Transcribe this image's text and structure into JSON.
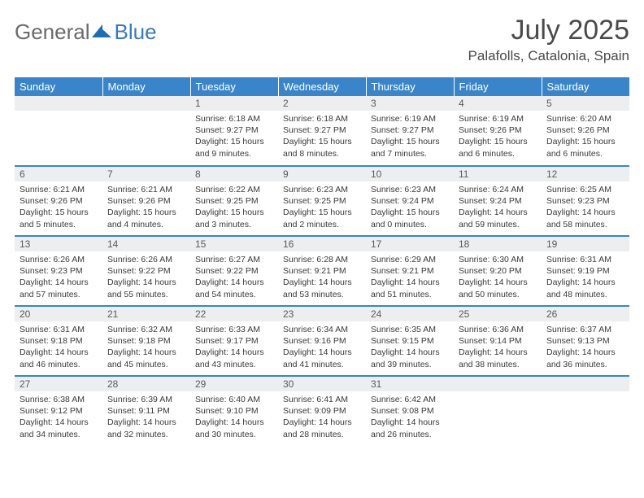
{
  "brand": {
    "part1": "General",
    "part2": "Blue"
  },
  "title": "July 2025",
  "location": "Palafolls, Catalonia, Spain",
  "colors": {
    "header_bg": "#3a85c9",
    "header_text": "#ffffff",
    "daynum_bg": "#eceeef",
    "row_border": "#3a85c9",
    "body_text": "#3a3a3a",
    "logo_gray": "#6b6b6b",
    "logo_blue": "#3a7ab8"
  },
  "typography": {
    "base_font": "Arial",
    "title_size": 34,
    "location_size": 17,
    "th_size": 13,
    "body_size": 10.5
  },
  "days_of_week": [
    "Sunday",
    "Monday",
    "Tuesday",
    "Wednesday",
    "Thursday",
    "Friday",
    "Saturday"
  ],
  "weeks": [
    [
      null,
      null,
      {
        "n": "1",
        "sr": "6:18 AM",
        "ss": "9:27 PM",
        "dl": "15 hours and 9 minutes."
      },
      {
        "n": "2",
        "sr": "6:18 AM",
        "ss": "9:27 PM",
        "dl": "15 hours and 8 minutes."
      },
      {
        "n": "3",
        "sr": "6:19 AM",
        "ss": "9:27 PM",
        "dl": "15 hours and 7 minutes."
      },
      {
        "n": "4",
        "sr": "6:19 AM",
        "ss": "9:26 PM",
        "dl": "15 hours and 6 minutes."
      },
      {
        "n": "5",
        "sr": "6:20 AM",
        "ss": "9:26 PM",
        "dl": "15 hours and 6 minutes."
      }
    ],
    [
      {
        "n": "6",
        "sr": "6:21 AM",
        "ss": "9:26 PM",
        "dl": "15 hours and 5 minutes."
      },
      {
        "n": "7",
        "sr": "6:21 AM",
        "ss": "9:26 PM",
        "dl": "15 hours and 4 minutes."
      },
      {
        "n": "8",
        "sr": "6:22 AM",
        "ss": "9:25 PM",
        "dl": "15 hours and 3 minutes."
      },
      {
        "n": "9",
        "sr": "6:23 AM",
        "ss": "9:25 PM",
        "dl": "15 hours and 2 minutes."
      },
      {
        "n": "10",
        "sr": "6:23 AM",
        "ss": "9:24 PM",
        "dl": "15 hours and 0 minutes."
      },
      {
        "n": "11",
        "sr": "6:24 AM",
        "ss": "9:24 PM",
        "dl": "14 hours and 59 minutes."
      },
      {
        "n": "12",
        "sr": "6:25 AM",
        "ss": "9:23 PM",
        "dl": "14 hours and 58 minutes."
      }
    ],
    [
      {
        "n": "13",
        "sr": "6:26 AM",
        "ss": "9:23 PM",
        "dl": "14 hours and 57 minutes."
      },
      {
        "n": "14",
        "sr": "6:26 AM",
        "ss": "9:22 PM",
        "dl": "14 hours and 55 minutes."
      },
      {
        "n": "15",
        "sr": "6:27 AM",
        "ss": "9:22 PM",
        "dl": "14 hours and 54 minutes."
      },
      {
        "n": "16",
        "sr": "6:28 AM",
        "ss": "9:21 PM",
        "dl": "14 hours and 53 minutes."
      },
      {
        "n": "17",
        "sr": "6:29 AM",
        "ss": "9:21 PM",
        "dl": "14 hours and 51 minutes."
      },
      {
        "n": "18",
        "sr": "6:30 AM",
        "ss": "9:20 PM",
        "dl": "14 hours and 50 minutes."
      },
      {
        "n": "19",
        "sr": "6:31 AM",
        "ss": "9:19 PM",
        "dl": "14 hours and 48 minutes."
      }
    ],
    [
      {
        "n": "20",
        "sr": "6:31 AM",
        "ss": "9:18 PM",
        "dl": "14 hours and 46 minutes."
      },
      {
        "n": "21",
        "sr": "6:32 AM",
        "ss": "9:18 PM",
        "dl": "14 hours and 45 minutes."
      },
      {
        "n": "22",
        "sr": "6:33 AM",
        "ss": "9:17 PM",
        "dl": "14 hours and 43 minutes."
      },
      {
        "n": "23",
        "sr": "6:34 AM",
        "ss": "9:16 PM",
        "dl": "14 hours and 41 minutes."
      },
      {
        "n": "24",
        "sr": "6:35 AM",
        "ss": "9:15 PM",
        "dl": "14 hours and 39 minutes."
      },
      {
        "n": "25",
        "sr": "6:36 AM",
        "ss": "9:14 PM",
        "dl": "14 hours and 38 minutes."
      },
      {
        "n": "26",
        "sr": "6:37 AM",
        "ss": "9:13 PM",
        "dl": "14 hours and 36 minutes."
      }
    ],
    [
      {
        "n": "27",
        "sr": "6:38 AM",
        "ss": "9:12 PM",
        "dl": "14 hours and 34 minutes."
      },
      {
        "n": "28",
        "sr": "6:39 AM",
        "ss": "9:11 PM",
        "dl": "14 hours and 32 minutes."
      },
      {
        "n": "29",
        "sr": "6:40 AM",
        "ss": "9:10 PM",
        "dl": "14 hours and 30 minutes."
      },
      {
        "n": "30",
        "sr": "6:41 AM",
        "ss": "9:09 PM",
        "dl": "14 hours and 28 minutes."
      },
      {
        "n": "31",
        "sr": "6:42 AM",
        "ss": "9:08 PM",
        "dl": "14 hours and 26 minutes."
      },
      null,
      null
    ]
  ],
  "labels": {
    "sunrise": "Sunrise:",
    "sunset": "Sunset:",
    "daylight": "Daylight:"
  }
}
